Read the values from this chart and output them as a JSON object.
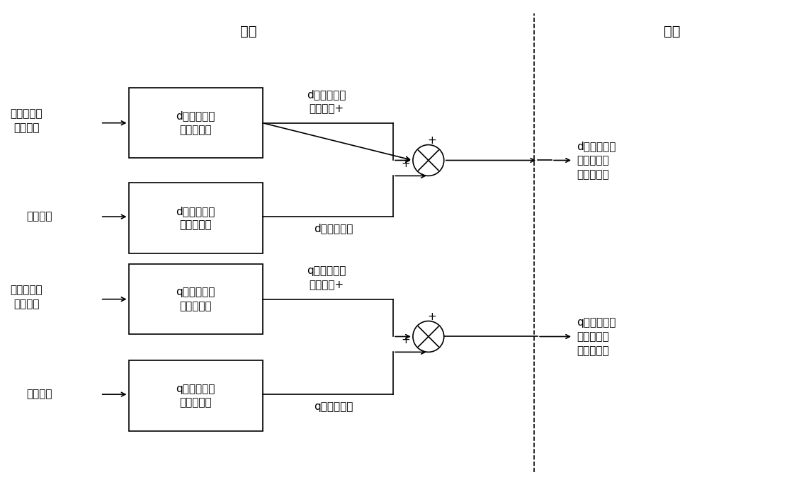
{
  "fig_width": 11.28,
  "fig_height": 6.88,
  "bg_color": "#ffffff",
  "line_color": "#000000",
  "text_color": "#000000",
  "font_size": 12,
  "title_outer": "外环",
  "title_inner": "内环",
  "box1_label": "d轴通道原始\n外环控制器",
  "box2_label": "d轴通道交流\n电压稳定器",
  "box3_label": "q轴通道原始\n外环控制器",
  "box4_label": "q轴通道交流\n电压稳定器",
  "input1_label": "直流电压或\n有功功率",
  "input2_label": "交流电压",
  "input3_label": "交流电压或\n无功功率",
  "input4_label": "交流电压",
  "output_label1_top": "d轴通道原始\n参考电流+",
  "output_label2_top": "d轴补偿电流",
  "output_label3_top": "q轴通道原始\n参考电流+",
  "output_label4_top": "q轴补偿电流",
  "right_output1": "d轴通道新的\n参考电流至\n内环控制器",
  "right_output2": "q轴通道新的\n参考电流至\n内环控制器"
}
